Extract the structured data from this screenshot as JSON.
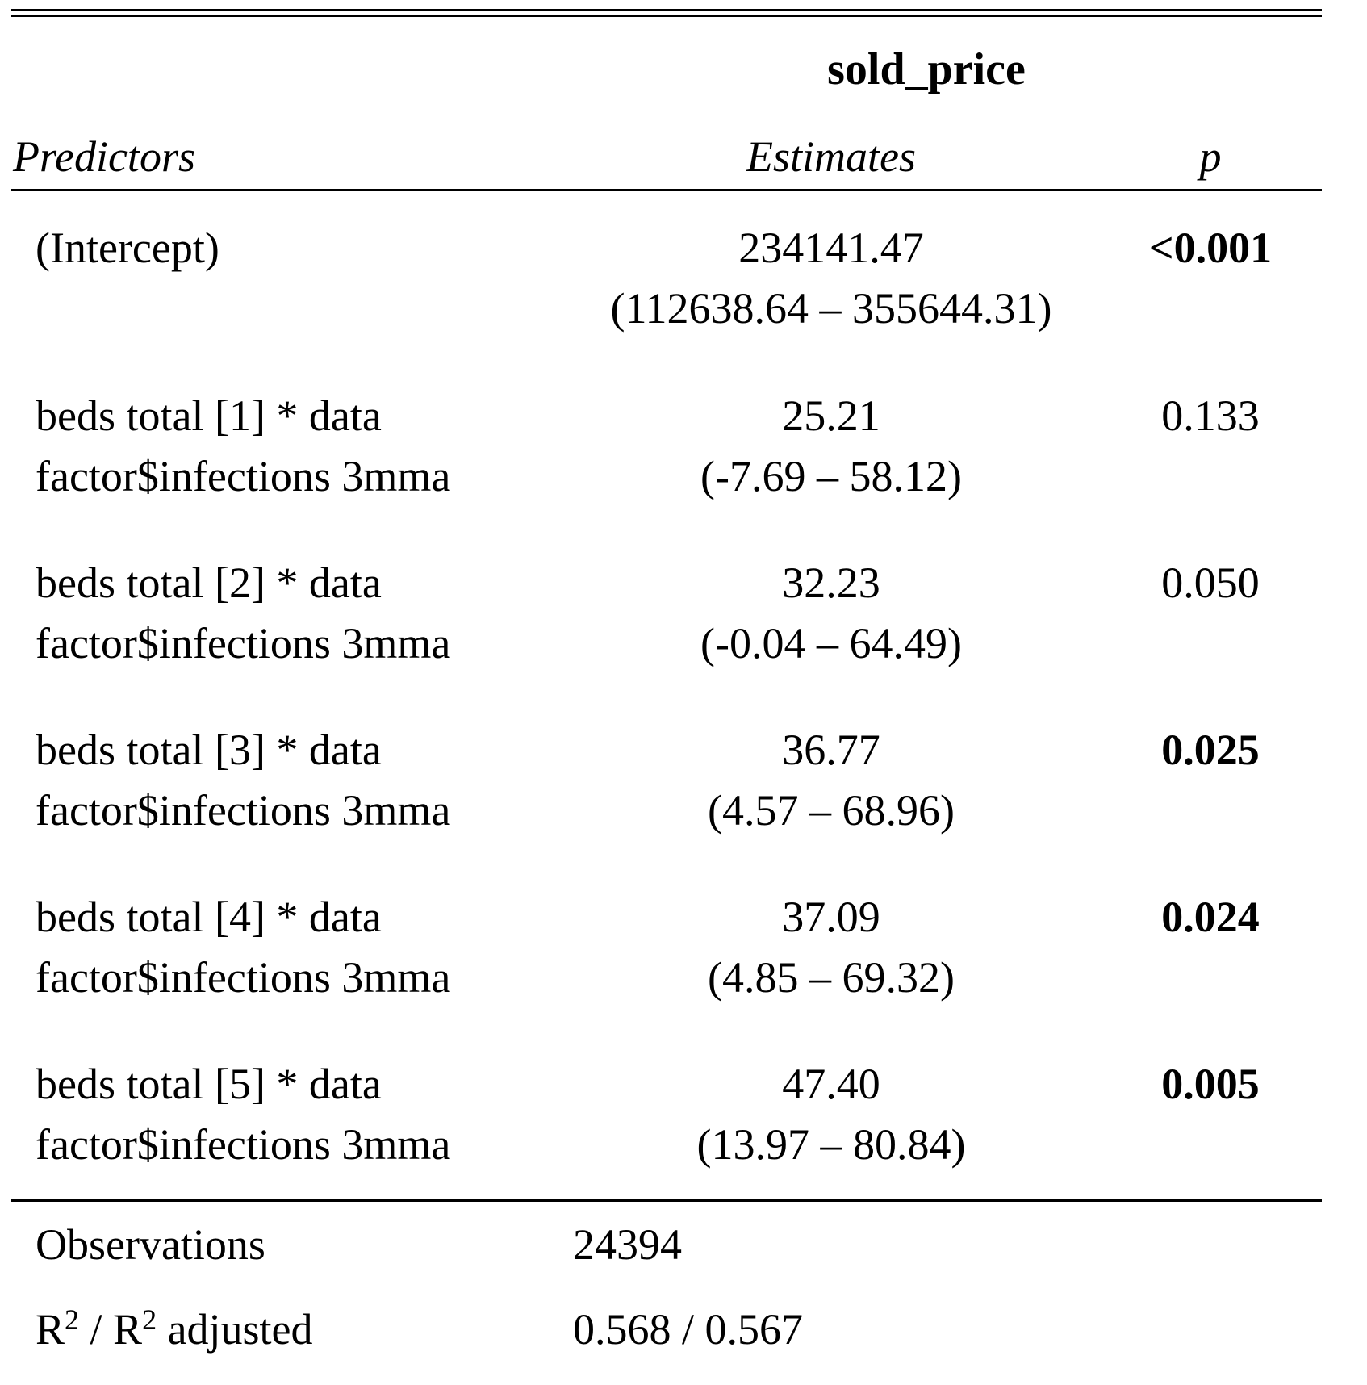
{
  "table": {
    "dependent_variable": "sold_price",
    "headers": {
      "predictors": "Predictors",
      "estimates": "Estimates",
      "p": "p"
    },
    "rows": [
      {
        "predictor": "(Intercept)",
        "predictor_line2": "",
        "estimate": "234141.47",
        "ci": "(112638.64 – 355644.31)",
        "p": "<0.001",
        "p_bold": true
      },
      {
        "predictor": "beds total [1] * data",
        "predictor_line2": "factor$infections 3mma",
        "estimate": "25.21",
        "ci": "(-7.69 – 58.12)",
        "p": "0.133",
        "p_bold": false
      },
      {
        "predictor": "beds total [2] * data",
        "predictor_line2": "factor$infections 3mma",
        "estimate": "32.23",
        "ci": "(-0.04 – 64.49)",
        "p": "0.050",
        "p_bold": false
      },
      {
        "predictor": "beds total [3] * data",
        "predictor_line2": "factor$infections 3mma",
        "estimate": "36.77",
        "ci": "(4.57 – 68.96)",
        "p": "0.025",
        "p_bold": true
      },
      {
        "predictor": "beds total [4] * data",
        "predictor_line2": "factor$infections 3mma",
        "estimate": "37.09",
        "ci": "(4.85 – 69.32)",
        "p": "0.024",
        "p_bold": true
      },
      {
        "predictor": "beds total [5] * data",
        "predictor_line2": "factor$infections 3mma",
        "estimate": "47.40",
        "ci": "(13.97 – 80.84)",
        "p": "0.005",
        "p_bold": true
      }
    ],
    "observations_label": "Observations",
    "observations_value": "24394",
    "r2_label_part1": "R",
    "r2_label_sup1": "2",
    "r2_label_mid": " / R",
    "r2_label_sup2": "2",
    "r2_label_part2": " adjusted",
    "r2_value": "0.568 / 0.567"
  }
}
